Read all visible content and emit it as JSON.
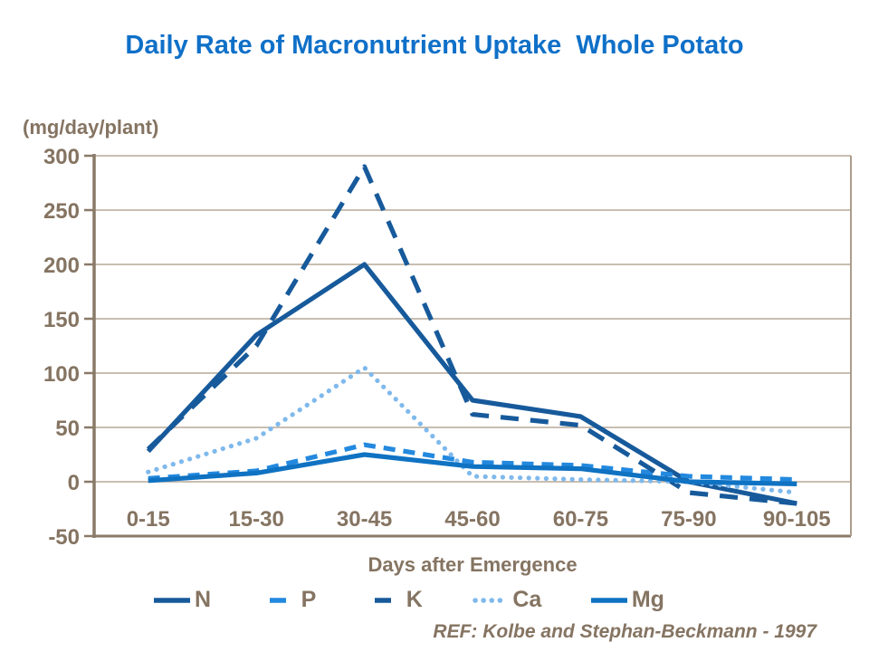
{
  "title": "Daily Rate of Macronutrient Uptake  Whole Potato",
  "y_unit_label": "(mg/day/plant)",
  "x_axis_title": "Days after Emergence",
  "ref_note": "REF: Kolbe and Stephan-Beckmann - 1997",
  "colors": {
    "title_blue": "#0F70C8",
    "text_taupe": "#857462",
    "axis_taupe": "#8A7A69",
    "gridline_taupe": "#B5A897",
    "border_taupe": "#AB9D8C",
    "dark_blue": "#175A9B",
    "bright_blue": "#2389DF",
    "medium_blue": "#0F72C2",
    "light_blue": "#7FB9EC"
  },
  "chart_data": {
    "type": "line",
    "title": "Daily Rate of Macronutrient Uptake  Whole Potato",
    "xlabel": "Days after Emergence",
    "ylabel": "(mg/day/plant)",
    "categories": [
      "0-15",
      "15-30",
      "30-45",
      "45-60",
      "60-75",
      "75-90",
      "90-105"
    ],
    "series": [
      {
        "name": "N",
        "color": "#175A9B",
        "style": "solid",
        "values": [
          28,
          135,
          200,
          75,
          60,
          0,
          -20
        ]
      },
      {
        "name": "P",
        "color": "#2389DF",
        "style": "dashed",
        "values": [
          3,
          10,
          34,
          18,
          15,
          5,
          2
        ]
      },
      {
        "name": "K",
        "color": "#175A9B",
        "style": "long-dash",
        "values": [
          30,
          125,
          290,
          62,
          52,
          -10,
          -20
        ]
      },
      {
        "name": "Ca",
        "color": "#7FB9EC",
        "style": "dotted",
        "values": [
          9,
          40,
          105,
          5,
          2,
          0,
          -10
        ]
      },
      {
        "name": "Mg",
        "color": "#0F72C2",
        "style": "solid",
        "values": [
          1,
          8,
          25,
          14,
          12,
          0,
          -2
        ]
      }
    ],
    "ylim": [
      -50,
      300
    ],
    "ytick_step": 50,
    "grid": true,
    "legend_position": "bottom"
  }
}
